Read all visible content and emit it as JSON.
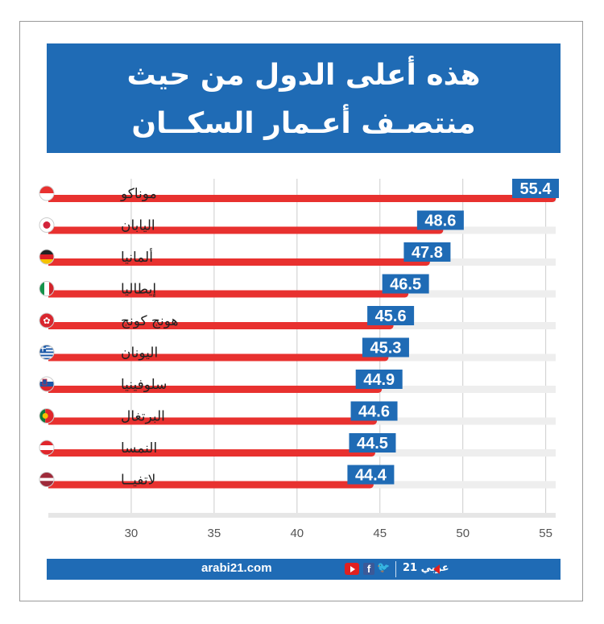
{
  "title": {
    "line1": "هذه أعلى الدول من حيث",
    "line2": "منتصـف أعـمار السكــان"
  },
  "chart_data": {
    "type": "bar",
    "orientation": "horizontal",
    "categories": [
      "موناكو",
      "اليابان",
      "ألمانيا",
      "إيطاليا",
      "هونج كونج",
      "اليونان",
      "سلوفينيا",
      "البرتغال",
      "النمسا",
      "لاتفيــا"
    ],
    "values": [
      55.4,
      48.6,
      47.8,
      46.5,
      45.6,
      45.3,
      44.9,
      44.6,
      44.5,
      44.4
    ],
    "value_labels": [
      "55.4",
      "48.6",
      "47.8",
      "46.5",
      "45.6",
      "45.3",
      "44.9",
      "44.6",
      "44.5",
      "44.4"
    ],
    "xticks": [
      "30",
      "35",
      "40",
      "45",
      "50",
      "55"
    ],
    "xtick_values": [
      30,
      35,
      40,
      45,
      50,
      55
    ],
    "xlim": [
      25,
      55.6
    ],
    "grid": true,
    "flags": [
      "monaco-flag-icon",
      "japan-flag-icon",
      "germany-flag-icon",
      "italy-flag-icon",
      "hong-kong-flag-icon",
      "greece-flag-icon",
      "slovenia-flag-icon",
      "portugal-flag-icon",
      "austria-flag-icon",
      "latvia-flag-icon"
    ],
    "colors": {
      "bar": "#e8312f",
      "track": "#eeeeee",
      "label_bg": "#1f6bb5",
      "grid": "#cccccc",
      "tick_text": "#555555"
    }
  },
  "footer": {
    "site": "arabi21.com",
    "brand": "عربي 21"
  }
}
